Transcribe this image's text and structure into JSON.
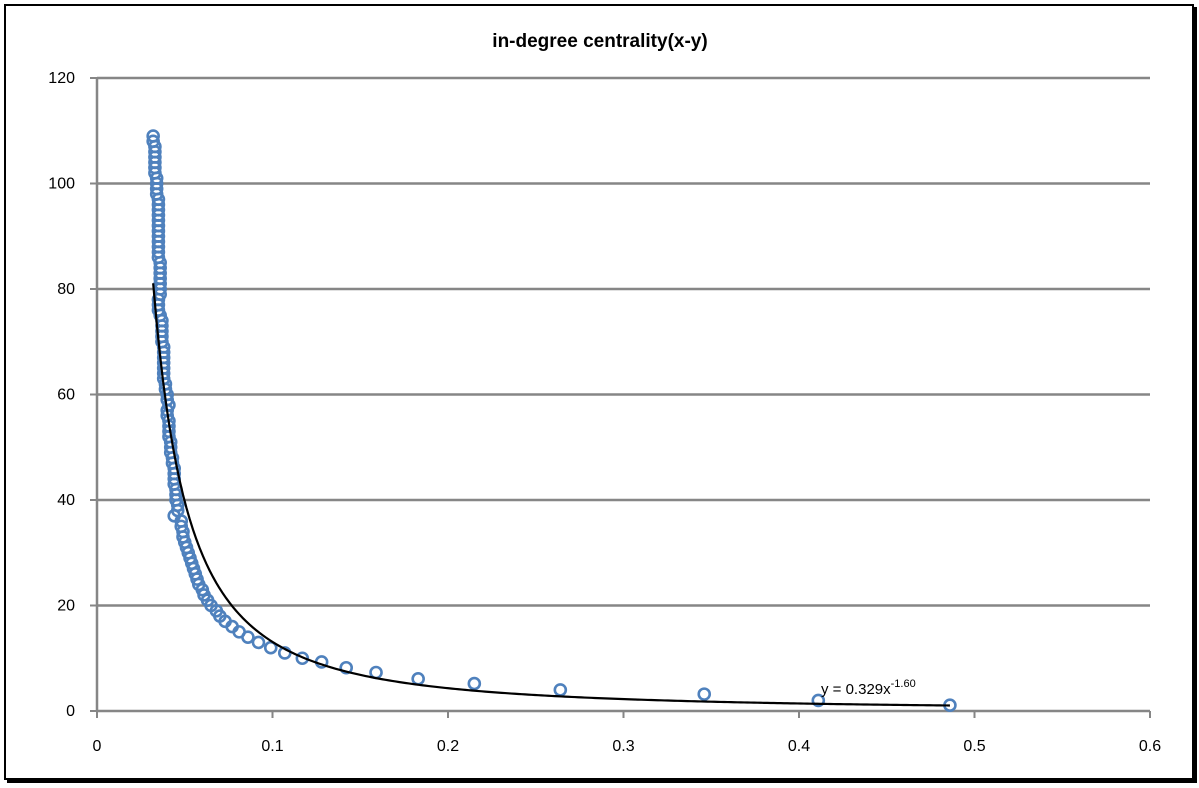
{
  "chart_data": {
    "type": "scatter",
    "title": "in-degree centrality(x-y)",
    "xlabel": "",
    "ylabel": "",
    "xlim": [
      0,
      0.6
    ],
    "ylim": [
      0,
      120
    ],
    "x_ticks": [
      "0",
      "0.1",
      "0.2",
      "0.3",
      "0.4",
      "0.5",
      "0.6"
    ],
    "y_ticks": [
      "0",
      "20",
      "40",
      "60",
      "80",
      "100",
      "120"
    ],
    "grid": "horizontal",
    "legend": "none",
    "marker_color": "#4f81bd",
    "trendline_color": "#000000",
    "trendline": {
      "type": "power",
      "a": 0.329,
      "b": -1.6,
      "x_range": [
        0.032,
        0.486
      ],
      "equation_base": "y = 0.329x",
      "equation_exponent": "-1.60"
    },
    "series": [
      {
        "points": [
          [
            0.032,
            109
          ],
          [
            0.032,
            108
          ],
          [
            0.033,
            107
          ],
          [
            0.033,
            106
          ],
          [
            0.033,
            105
          ],
          [
            0.033,
            104
          ],
          [
            0.033,
            103
          ],
          [
            0.033,
            102
          ],
          [
            0.034,
            101
          ],
          [
            0.034,
            100
          ],
          [
            0.034,
            99
          ],
          [
            0.034,
            98
          ],
          [
            0.035,
            97
          ],
          [
            0.035,
            96
          ],
          [
            0.035,
            95
          ],
          [
            0.035,
            94
          ],
          [
            0.035,
            93
          ],
          [
            0.035,
            92
          ],
          [
            0.035,
            91
          ],
          [
            0.035,
            90
          ],
          [
            0.035,
            89
          ],
          [
            0.035,
            88
          ],
          [
            0.035,
            87
          ],
          [
            0.035,
            86
          ],
          [
            0.036,
            85
          ],
          [
            0.036,
            84
          ],
          [
            0.036,
            83
          ],
          [
            0.036,
            82
          ],
          [
            0.036,
            81
          ],
          [
            0.036,
            80
          ],
          [
            0.036,
            79
          ],
          [
            0.035,
            78
          ],
          [
            0.035,
            77
          ],
          [
            0.035,
            76
          ],
          [
            0.036,
            75
          ],
          [
            0.037,
            74
          ],
          [
            0.037,
            73
          ],
          [
            0.037,
            72
          ],
          [
            0.037,
            71
          ],
          [
            0.037,
            70
          ],
          [
            0.038,
            69
          ],
          [
            0.038,
            68
          ],
          [
            0.038,
            67
          ],
          [
            0.038,
            66
          ],
          [
            0.038,
            65
          ],
          [
            0.038,
            64
          ],
          [
            0.038,
            63
          ],
          [
            0.039,
            62
          ],
          [
            0.039,
            61
          ],
          [
            0.04,
            60
          ],
          [
            0.04,
            59
          ],
          [
            0.041,
            58
          ],
          [
            0.04,
            57
          ],
          [
            0.04,
            56
          ],
          [
            0.041,
            55
          ],
          [
            0.041,
            54
          ],
          [
            0.041,
            53
          ],
          [
            0.041,
            52
          ],
          [
            0.042,
            51
          ],
          [
            0.042,
            50
          ],
          [
            0.042,
            49
          ],
          [
            0.043,
            48
          ],
          [
            0.043,
            47
          ],
          [
            0.044,
            46
          ],
          [
            0.044,
            45
          ],
          [
            0.044,
            44
          ],
          [
            0.044,
            43
          ],
          [
            0.045,
            42
          ],
          [
            0.045,
            41
          ],
          [
            0.045,
            40
          ],
          [
            0.046,
            39
          ],
          [
            0.046,
            38
          ],
          [
            0.044,
            37
          ],
          [
            0.048,
            36
          ],
          [
            0.048,
            35
          ],
          [
            0.049,
            34
          ],
          [
            0.049,
            33
          ],
          [
            0.05,
            32
          ],
          [
            0.051,
            31
          ],
          [
            0.052,
            30
          ],
          [
            0.053,
            29
          ],
          [
            0.054,
            28
          ],
          [
            0.055,
            27
          ],
          [
            0.056,
            26
          ],
          [
            0.057,
            25
          ],
          [
            0.058,
            24
          ],
          [
            0.06,
            23
          ],
          [
            0.061,
            22
          ],
          [
            0.063,
            21
          ],
          [
            0.065,
            20
          ],
          [
            0.068,
            19
          ],
          [
            0.07,
            18
          ],
          [
            0.073,
            17
          ],
          [
            0.077,
            16
          ],
          [
            0.081,
            15
          ],
          [
            0.086,
            14
          ],
          [
            0.092,
            13
          ],
          [
            0.099,
            12
          ],
          [
            0.107,
            11
          ],
          [
            0.117,
            10
          ],
          [
            0.128,
            9.3
          ],
          [
            0.142,
            8.2
          ],
          [
            0.159,
            7.3
          ],
          [
            0.183,
            6.1
          ],
          [
            0.215,
            5.2
          ],
          [
            0.264,
            4.0
          ],
          [
            0.346,
            3.2
          ],
          [
            0.411,
            2.0
          ],
          [
            0.486,
            1.1
          ]
        ]
      }
    ]
  }
}
